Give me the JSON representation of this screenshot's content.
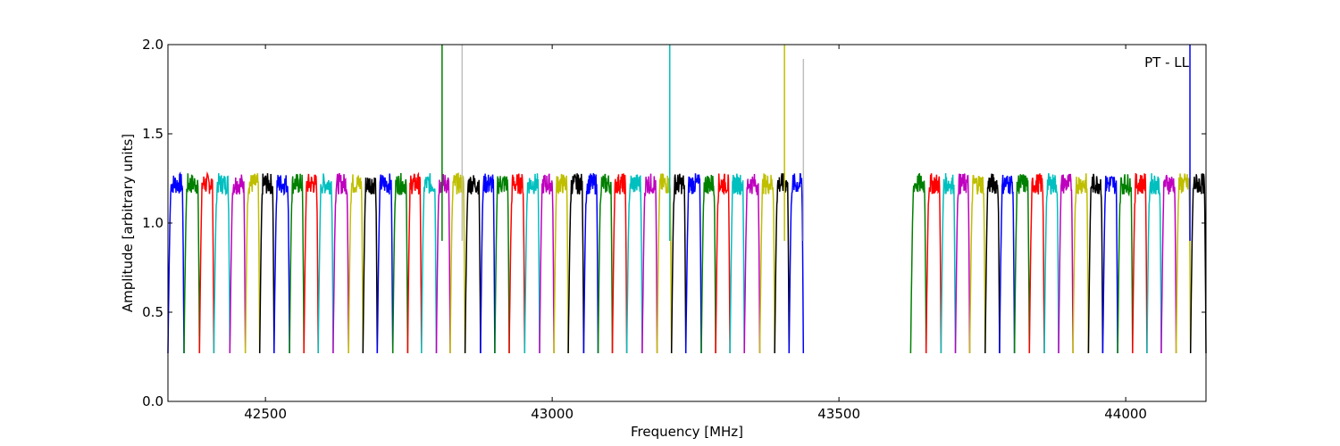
{
  "chart_data": {
    "type": "line",
    "title": "",
    "xlabel": "Frequency [MHz]",
    "ylabel": "Amplitude [arbitrary units]",
    "annotation": "PT - LL",
    "xlim": [
      42330,
      44140
    ],
    "ylim": [
      0.0,
      2.0
    ],
    "x_ticks": [
      42500,
      43000,
      43500,
      44000
    ],
    "y_ticks": [
      0.0,
      0.5,
      1.0,
      1.5,
      2.0
    ],
    "x_tick_labels": [
      "42500",
      "43000",
      "43500",
      "44000"
    ],
    "y_tick_labels": [
      "0.0",
      "0.5",
      "1.0",
      "1.5",
      "2.0"
    ],
    "grid": false,
    "color_cycle": [
      "#0000ff",
      "#008000",
      "#ff0000",
      "#00bfbf",
      "#bf00bf",
      "#bfbf00",
      "#000000"
    ],
    "band_min": 0.27,
    "band_max": 1.22,
    "segments": [
      [
        42330,
        42358
      ],
      [
        42358,
        42385
      ],
      [
        42385,
        42410
      ],
      [
        42410,
        42438
      ],
      [
        42438,
        42465
      ],
      [
        42465,
        42490
      ],
      [
        42490,
        42515
      ],
      [
        42515,
        42542
      ],
      [
        42542,
        42567
      ],
      [
        42567,
        42592
      ],
      [
        42592,
        42618
      ],
      [
        42618,
        42645
      ],
      [
        42645,
        42670
      ],
      [
        42670,
        42695
      ],
      [
        42695,
        42722
      ],
      [
        42722,
        42748
      ],
      [
        42748,
        42772
      ],
      [
        42772,
        42798
      ],
      [
        42798,
        42822
      ],
      [
        42822,
        42848
      ],
      [
        42848,
        42875
      ],
      [
        42875,
        42900
      ],
      [
        42900,
        42925
      ],
      [
        42925,
        42952
      ],
      [
        42952,
        42978
      ],
      [
        42978,
        43003
      ],
      [
        43003,
        43028
      ],
      [
        43028,
        43055
      ],
      [
        43055,
        43080
      ],
      [
        43080,
        43105
      ],
      [
        43105,
        43130
      ],
      [
        43130,
        43157
      ],
      [
        43157,
        43183
      ],
      [
        43183,
        43208
      ],
      [
        43208,
        43233
      ],
      [
        43233,
        43260
      ],
      [
        43260,
        43285
      ],
      [
        43285,
        43310
      ],
      [
        43310,
        43335
      ],
      [
        43335,
        43362
      ],
      [
        43362,
        43388
      ],
      [
        43388,
        43413
      ],
      [
        43413,
        43438
      ],
      [
        43625,
        43652
      ],
      [
        43652,
        43678
      ],
      [
        43678,
        43703
      ],
      [
        43703,
        43728
      ],
      [
        43728,
        43755
      ],
      [
        43755,
        43780
      ],
      [
        43780,
        43806
      ],
      [
        43806,
        43832
      ],
      [
        43832,
        43858
      ],
      [
        43858,
        43883
      ],
      [
        43883,
        43908
      ],
      [
        43908,
        43935
      ],
      [
        43935,
        43960
      ],
      [
        43960,
        43986
      ],
      [
        43986,
        44012
      ],
      [
        44012,
        44037
      ],
      [
        44037,
        44062
      ],
      [
        44062,
        44088
      ],
      [
        44088,
        44113
      ],
      [
        44113,
        44140
      ]
    ],
    "spikes": [
      {
        "x": 42808,
        "y": 2.0,
        "color": "#008000"
      },
      {
        "x": 42843,
        "y": 2.0,
        "color": "#bfbfbf"
      },
      {
        "x": 43205,
        "y": 2.0,
        "color": "#00bfbf"
      },
      {
        "x": 43405,
        "y": 2.0,
        "color": "#bfbf00"
      },
      {
        "x": 43438,
        "y": 1.92,
        "color": "#bfbfbf"
      },
      {
        "x": 44112,
        "y": 2.0,
        "color": "#0000ff"
      }
    ]
  }
}
